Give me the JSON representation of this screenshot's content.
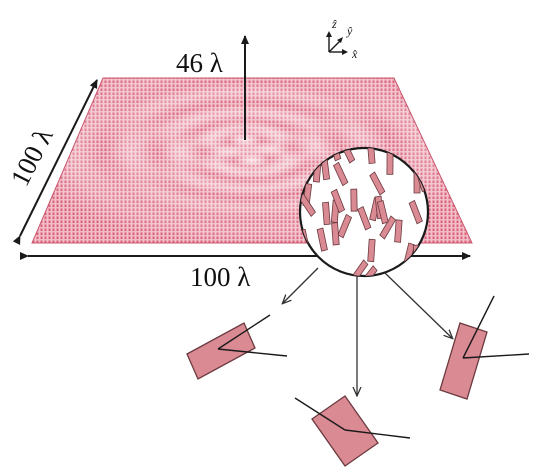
{
  "labels": {
    "height": "46 λ",
    "width": "100 λ",
    "depth": "100 λ"
  },
  "axes": {
    "z": "ẑ",
    "y": "ŷ",
    "x": "x̂"
  },
  "colors": {
    "surface": "#e48496",
    "surface_dark": "#c8566e",
    "element_fill": "#d98a93",
    "element_stroke": "#6b3a3f",
    "line": "#1a1a1a"
  },
  "icons": [
    "up-arrow-icon",
    "double-arrow-icon",
    "axes-icon",
    "magnifier-circle-icon"
  ]
}
